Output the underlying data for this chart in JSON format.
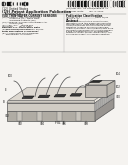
{
  "bg_color": "#f5f3f0",
  "dark_color": "#1a1a1a",
  "mid_color": "#888888",
  "diagram": {
    "top_face_color": "#e8e4dc",
    "top_face_edge": "#555555",
    "front_face_color": "#d0ccc4",
    "front_face_edge": "#555555",
    "right_face_color": "#b8b4ac",
    "right_face_edge": "#555555",
    "bottom_box_top": "#c8c4bc",
    "bottom_box_front": "#b0aca4",
    "bottom_box_right": "#989490",
    "sensor_color": "#3a3a3a",
    "pkg_top": "#d0ccc4",
    "pkg_side": "#b8b4ac",
    "pkg_front": "#c0bbb4",
    "wire_color": "#555555",
    "stripe_color": "#cccccc",
    "stripe_dark": "#aaaaaa"
  }
}
